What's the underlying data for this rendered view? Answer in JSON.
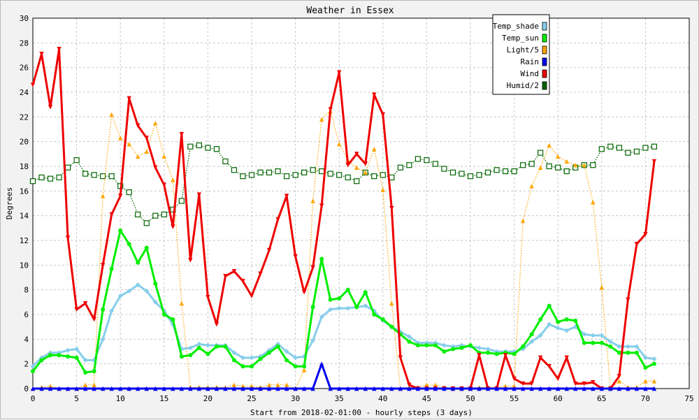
{
  "chart_data": {
    "type": "line",
    "title": "Weather in Essex",
    "xlabel": "Start from 2018-02-01:00 - hourly steps (3 days)",
    "ylabel": "Degrees",
    "xlim": [
      0,
      75
    ],
    "ylim": [
      0,
      30
    ],
    "xticks": [
      0,
      5,
      10,
      15,
      20,
      25,
      30,
      35,
      40,
      45,
      50,
      55,
      60,
      65,
      70,
      75
    ],
    "yticks": [
      0,
      2,
      4,
      6,
      8,
      10,
      12,
      14,
      16,
      18,
      20,
      22,
      24,
      26,
      28,
      30
    ],
    "grid": true,
    "legend_position": "top-right",
    "series": [
      {
        "name": "Temp_shade",
        "color": "#87ceeb",
        "marker": "diamond",
        "values": [
          1.8,
          2.5,
          2.9,
          2.9,
          3.1,
          3.2,
          2.3,
          2.3,
          4.0,
          6.3,
          7.5,
          7.9,
          8.4,
          7.9,
          7.0,
          6.3,
          5.2,
          3.2,
          3.3,
          3.6,
          3.5,
          3.5,
          3.5,
          2.9,
          2.5,
          2.5,
          2.6,
          3.1,
          3.6,
          3.0,
          2.5,
          2.6,
          3.9,
          5.8,
          6.4,
          6.5,
          6.5,
          6.6,
          6.7,
          6.3,
          5.5,
          5.0,
          4.6,
          4.2,
          3.7,
          3.7,
          3.7,
          3.5,
          3.4,
          3.5,
          3.4,
          3.3,
          3.2,
          3.0,
          3.0,
          3.0,
          3.2,
          3.8,
          4.3,
          5.2,
          4.9,
          4.7,
          5.0,
          4.4,
          4.3,
          4.3,
          3.8,
          3.4,
          3.4,
          3.4,
          2.5,
          2.4
        ]
      },
      {
        "name": "Temp_sun",
        "color": "#00ee00",
        "marker": "circle",
        "values": [
          1.4,
          2.3,
          2.7,
          2.7,
          2.6,
          2.5,
          1.3,
          1.4,
          6.4,
          9.7,
          12.8,
          11.7,
          10.2,
          11.4,
          8.5,
          6.0,
          5.6,
          2.6,
          2.7,
          3.3,
          2.8,
          3.4,
          3.4,
          2.3,
          1.8,
          1.8,
          2.4,
          2.9,
          3.4,
          2.3,
          1.8,
          1.8,
          6.6,
          10.5,
          7.2,
          7.3,
          8.0,
          6.6,
          7.8,
          6.0,
          5.6,
          5.0,
          4.4,
          3.8,
          3.5,
          3.5,
          3.5,
          3.0,
          3.2,
          3.3,
          3.5,
          2.9,
          2.9,
          2.8,
          2.9,
          2.8,
          3.4,
          4.4,
          5.6,
          6.7,
          5.4,
          5.6,
          5.5,
          3.7,
          3.7,
          3.7,
          3.4,
          2.9,
          2.9,
          2.9,
          1.7,
          2.0
        ]
      },
      {
        "name": "Light/5",
        "color": "#ffa500",
        "marker": "triangle-up",
        "values": [
          0.0,
          0.1,
          0.2,
          0.0,
          0.0,
          0.0,
          0.3,
          0.3,
          15.6,
          22.2,
          20.3,
          19.8,
          18.8,
          19.2,
          21.5,
          18.8,
          16.9,
          6.9,
          0.1,
          0.1,
          0.1,
          0.1,
          0.1,
          0.3,
          0.2,
          0.2,
          0.1,
          0.3,
          0.3,
          0.3,
          0.0,
          1.5,
          15.2,
          21.8,
          22.5,
          19.8,
          18.5,
          17.9,
          17.5,
          19.4,
          16.1,
          6.9,
          0.0,
          0.1,
          0.1,
          0.3,
          0.3,
          0.1,
          0.0,
          0.0,
          0.0,
          0.1,
          0.1,
          0.1,
          0.2,
          0.2,
          13.6,
          16.4,
          17.9,
          19.7,
          18.8,
          18.4,
          18.1,
          18.1,
          15.1,
          8.2,
          0.0,
          0.6,
          0.1,
          0.1,
          0.6,
          0.6
        ]
      },
      {
        "name": "Rain",
        "color": "#0000ee",
        "marker": "triangle-up",
        "values": [
          0,
          0,
          0,
          0,
          0,
          0,
          0,
          0,
          0,
          0,
          0,
          0,
          0,
          0,
          0,
          0,
          0,
          0,
          0,
          0,
          0,
          0,
          0,
          0,
          0,
          0,
          0,
          0,
          0,
          0,
          0,
          0,
          0,
          2.0,
          0,
          0,
          0,
          0,
          0,
          0,
          0,
          0,
          0,
          0,
          0,
          0,
          0,
          0,
          0,
          0,
          0,
          0,
          0,
          0,
          0,
          0,
          0,
          0,
          0,
          0,
          0,
          0,
          0,
          0,
          0,
          0,
          0,
          0,
          0,
          0,
          0,
          0
        ]
      },
      {
        "name": "Wind",
        "color": "#ee0000",
        "marker": "triangle-down",
        "values": [
          24.6,
          27.1,
          22.8,
          27.5,
          12.2,
          6.4,
          6.9,
          5.6,
          10.0,
          14.1,
          15.6,
          23.5,
          21.3,
          20.3,
          17.9,
          16.5,
          13.1,
          20.6,
          10.4,
          15.7,
          7.4,
          5.2,
          9.1,
          9.5,
          8.7,
          7.5,
          9.3,
          11.2,
          13.7,
          15.6,
          10.7,
          7.8,
          9.8,
          14.8,
          22.6,
          25.6,
          18.1,
          19.0,
          18.2,
          23.8,
          22.2,
          14.6,
          2.5,
          0.3,
          0.0,
          0.0,
          0.0,
          0.0,
          0.0,
          0.0,
          0.0,
          2.7,
          0.0,
          0.0,
          2.7,
          0.8,
          0.4,
          0.4,
          2.5,
          1.8,
          0.8,
          2.5,
          0.4,
          0.4,
          0.5,
          0.0,
          0.0,
          1.0,
          7.2,
          11.7,
          12.5,
          18.4
        ]
      },
      {
        "name": "Humid/2",
        "color": "#006400",
        "marker": "square",
        "values": [
          16.8,
          17.1,
          17.0,
          17.1,
          17.9,
          18.5,
          17.4,
          17.3,
          17.2,
          17.2,
          16.4,
          15.9,
          14.1,
          13.4,
          14.0,
          14.1,
          14.5,
          15.2,
          19.6,
          19.7,
          19.5,
          19.4,
          18.4,
          17.7,
          17.2,
          17.3,
          17.5,
          17.5,
          17.6,
          17.2,
          17.3,
          17.5,
          17.7,
          17.6,
          17.4,
          17.3,
          17.1,
          16.8,
          17.5,
          17.2,
          17.3,
          17.1,
          17.9,
          18.1,
          18.6,
          18.5,
          18.2,
          17.8,
          17.5,
          17.4,
          17.2,
          17.3,
          17.5,
          17.7,
          17.6,
          17.6,
          18.1,
          18.2,
          19.1,
          18.0,
          17.9,
          17.6,
          17.9,
          18.1,
          18.1,
          19.4,
          19.6,
          19.5,
          19.1,
          19.2,
          19.5,
          19.6
        ]
      }
    ]
  }
}
